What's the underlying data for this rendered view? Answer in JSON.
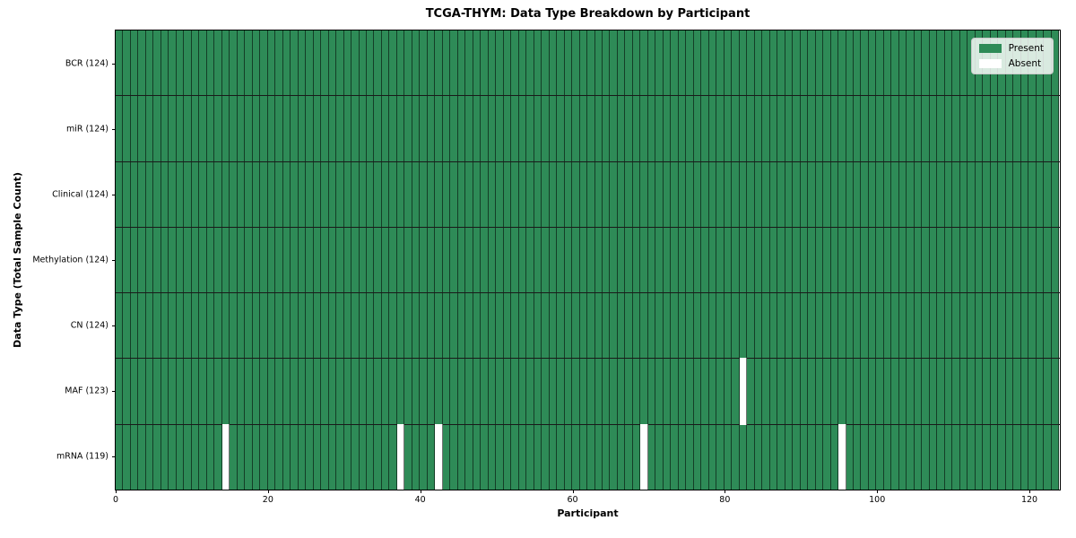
{
  "figure": {
    "title": "TCGA-THYM: Data Type Breakdown by Participant",
    "xlabel": "Participant",
    "ylabel": "Data Type (Total Sample Count)"
  },
  "chart_data": {
    "type": "heatmap",
    "title": "TCGA-THYM: Data Type Breakdown by Participant",
    "xlabel": "Participant",
    "ylabel": "Data Type (Total Sample Count)",
    "n_participants": 124,
    "xlim": [
      0,
      124
    ],
    "x_ticks": [
      0,
      20,
      40,
      60,
      80,
      100,
      120
    ],
    "grid": false,
    "rows": [
      {
        "data_type": "BCR",
        "label": "BCR (124)",
        "present_count": 124,
        "absent_participants": []
      },
      {
        "data_type": "miR",
        "label": "miR (124)",
        "present_count": 124,
        "absent_participants": []
      },
      {
        "data_type": "Clinical",
        "label": "Clinical (124)",
        "present_count": 124,
        "absent_participants": []
      },
      {
        "data_type": "Methylation",
        "label": "Methylation (124)",
        "present_count": 124,
        "absent_participants": []
      },
      {
        "data_type": "CN",
        "label": "CN (124)",
        "present_count": 124,
        "absent_participants": []
      },
      {
        "data_type": "MAF",
        "label": "MAF (123)",
        "present_count": 123,
        "absent_participants": [
          82
        ]
      },
      {
        "data_type": "mRNA",
        "label": "mRNA (119)",
        "present_count": 119,
        "absent_participants": [
          14,
          37,
          42,
          69,
          95
        ]
      }
    ],
    "colors": {
      "present": "#2e8b57",
      "absent": "#ffffff",
      "cell_edge": "rgba(0,0,0,0.55)",
      "row_separator": "#1a1a1a",
      "spine": "#000000"
    },
    "legend": {
      "position": "upper right",
      "items": [
        {
          "label": "Present",
          "color": "#2e8b57"
        },
        {
          "label": "Absent",
          "color": "#ffffff"
        }
      ]
    }
  }
}
